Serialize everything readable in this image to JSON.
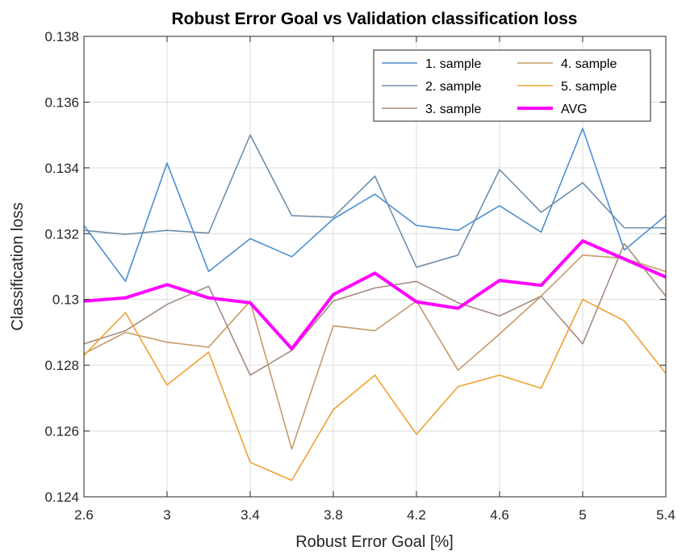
{
  "chart_data": {
    "type": "line",
    "title": "Robust Error Goal vs Validation classification loss",
    "xlabel": "Robust Error Goal [%]",
    "ylabel": "Classification loss",
    "xlim": [
      2.6,
      5.4
    ],
    "ylim": [
      0.124,
      0.138
    ],
    "xticks": [
      "2.6",
      "3",
      "3.4",
      "3.8",
      "4.2",
      "4.6",
      "5",
      "5.4"
    ],
    "xtick_values": [
      2.6,
      3.0,
      3.4,
      3.8,
      4.2,
      4.6,
      5.0,
      5.4
    ],
    "yticks": [
      "0.124",
      "0.126",
      "0.128",
      "0.13",
      "0.132",
      "0.134",
      "0.136",
      "0.138"
    ],
    "ytick_values": [
      0.124,
      0.126,
      0.128,
      0.13,
      0.132,
      0.134,
      0.136,
      0.138
    ],
    "xgrid_values": [
      2.6,
      3.0,
      3.4,
      3.8,
      4.2,
      4.6,
      5.0,
      5.4
    ],
    "grid": true,
    "legend_position": "top-right",
    "x": [
      2.6,
      2.8,
      3.0,
      3.2,
      3.4,
      3.6,
      3.8,
      4.0,
      4.2,
      4.4,
      4.6,
      4.8,
      5.0,
      5.2,
      5.4
    ],
    "series": [
      {
        "name": "1. sample",
        "color": "#4d8fd1",
        "values": [
          0.13225,
          0.13055,
          0.13415,
          0.13085,
          0.13185,
          0.1313,
          0.13245,
          0.1332,
          0.13225,
          0.1321,
          0.13285,
          0.13205,
          0.1352,
          0.1315,
          0.13255
        ]
      },
      {
        "name": "2. sample",
        "color": "#6f8fab",
        "values": [
          0.1321,
          0.13198,
          0.1321,
          0.13202,
          0.135,
          0.13255,
          0.1325,
          0.13375,
          0.13098,
          0.13135,
          0.13395,
          0.13265,
          0.13355,
          0.13218,
          0.13218
        ]
      },
      {
        "name": "3. sample",
        "color": "#a58c7f",
        "values": [
          0.12865,
          0.12905,
          0.12985,
          0.1304,
          0.1277,
          0.12845,
          0.12995,
          0.13035,
          0.13055,
          0.1299,
          0.1295,
          0.1301,
          0.12865,
          0.1317,
          0.1301
        ]
      },
      {
        "name": "4. sample",
        "color": "#c79a66",
        "values": [
          0.12835,
          0.129,
          0.1287,
          0.12855,
          0.12995,
          0.12545,
          0.1292,
          0.12905,
          0.12995,
          0.12785,
          0.12895,
          0.1301,
          0.13135,
          0.13125,
          0.13085
        ]
      },
      {
        "name": "5. sample",
        "color": "#f0a030",
        "values": [
          0.1283,
          0.1296,
          0.1274,
          0.1284,
          0.12505,
          0.1245,
          0.12665,
          0.1277,
          0.1259,
          0.12735,
          0.1277,
          0.1273,
          0.13,
          0.12935,
          0.12775
        ]
      },
      {
        "name": "AVG",
        "color": "#ff00ff",
        "line_width": 4,
        "values": [
          0.12995,
          0.13005,
          0.13045,
          0.13005,
          0.1299,
          0.1285,
          0.13015,
          0.1308,
          0.12993,
          0.12973,
          0.13058,
          0.13043,
          0.13178,
          0.13123,
          0.13068
        ]
      }
    ],
    "legend_order": [
      "1. sample",
      "2. sample",
      "3. sample",
      "4. sample",
      "5. sample",
      "AVG"
    ]
  }
}
